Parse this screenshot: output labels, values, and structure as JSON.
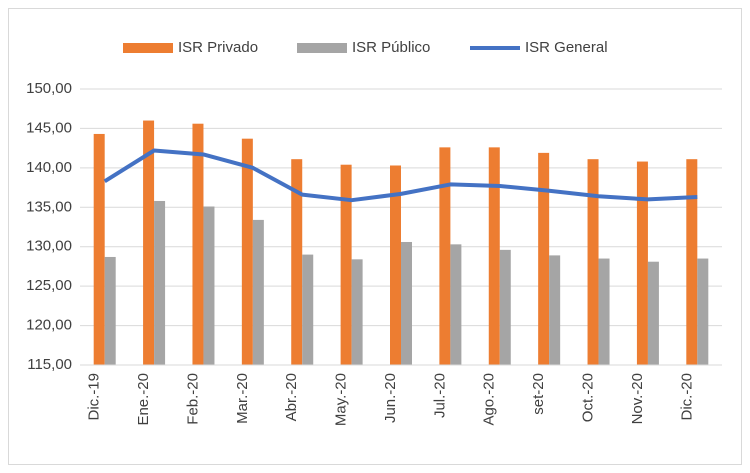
{
  "chart_data": {
    "type": "bar_line",
    "categories": [
      "Dic.-19",
      "Ene.-20",
      "Feb.-20",
      "Mar.-20",
      "Abr.-20",
      "May.-20",
      "Jun.-20",
      "Jul.-20",
      "Ago.-20",
      "set-20",
      "Oct.-20",
      "Nov.-20",
      "Dic.-20"
    ],
    "series": [
      {
        "name": "ISR Privado",
        "type": "bar",
        "color": "#ed7d31",
        "values": [
          144.3,
          146.0,
          145.6,
          143.7,
          141.1,
          140.4,
          140.3,
          142.6,
          142.6,
          141.9,
          141.1,
          140.8,
          141.1
        ]
      },
      {
        "name": "ISR Público",
        "type": "bar",
        "color": "#a5a5a5",
        "values": [
          128.7,
          135.8,
          135.1,
          133.4,
          129.0,
          128.4,
          130.6,
          130.3,
          129.6,
          128.9,
          128.5,
          128.1,
          128.5
        ]
      },
      {
        "name": "ISR General",
        "type": "line",
        "color": "#4472c4",
        "values": [
          138.3,
          142.2,
          141.7,
          140.0,
          136.6,
          135.9,
          136.7,
          137.9,
          137.7,
          137.1,
          136.4,
          136.0,
          136.3
        ]
      }
    ],
    "ylim": [
      115,
      150
    ],
    "yticks": [
      {
        "value": 115,
        "label": "115,00"
      },
      {
        "value": 120,
        "label": "120,00"
      },
      {
        "value": 125,
        "label": "125,00"
      },
      {
        "value": 130,
        "label": "130,00"
      },
      {
        "value": 135,
        "label": "135,00"
      },
      {
        "value": 140,
        "label": "140,00"
      },
      {
        "value": 145,
        "label": "145,00"
      },
      {
        "value": 150,
        "label": "150,00"
      }
    ],
    "grid": true,
    "legend": "top"
  }
}
